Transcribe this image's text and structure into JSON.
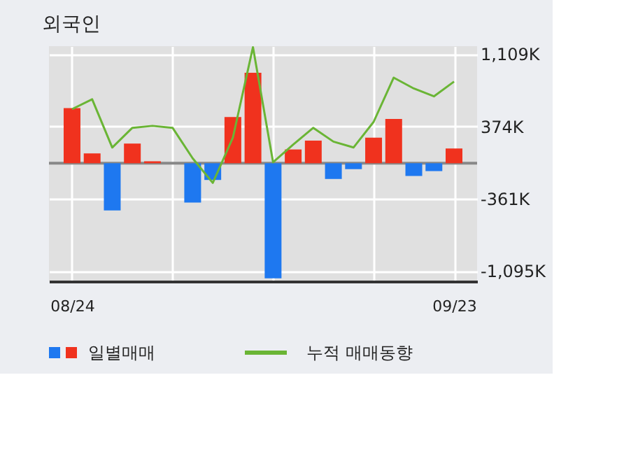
{
  "chart_data": {
    "type": "bar",
    "title": "외국인",
    "categories": [
      "08/24",
      null,
      null,
      null,
      null,
      null,
      null,
      null,
      null,
      null,
      null,
      null,
      null,
      null,
      null,
      null,
      null,
      null,
      null,
      "09/23"
    ],
    "series": [
      {
        "name": "일별매매",
        "colors": [
          "#f0321e",
          "#f0321e",
          "#1e78f0",
          "#f0321e",
          "#f0321e",
          "#f0321e",
          "#1e78f0",
          "#1e78f0",
          "#f0321e",
          "#f0321e",
          "#1e78f0",
          "#f0321e",
          "#f0321e",
          "#1e78f0",
          "#1e78f0",
          "#f0321e",
          "#f0321e",
          "#1e78f0",
          "#1e78f0",
          "#f0321e"
        ],
        "values": [
          560,
          100,
          -480,
          200,
          20,
          0,
          -400,
          -170,
          470,
          920,
          -1170,
          140,
          230,
          -160,
          -60,
          260,
          450,
          -130,
          -80,
          150
        ]
      },
      {
        "name": "누적 매매동향",
        "type": "line",
        "color": "#6ab535",
        "values": [
          550,
          650,
          160,
          360,
          380,
          360,
          50,
          -200,
          260,
          1180,
          10,
          190,
          360,
          220,
          160,
          420,
          870,
          760,
          680,
          830
        ]
      }
    ],
    "ylim": [
      -1200,
      1190
    ],
    "yticks": [
      {
        "value": 1109,
        "label": "1,109K"
      },
      {
        "value": 374,
        "label": "374K"
      },
      {
        "value": -361,
        "label": "-361K"
      },
      {
        "value": -1095,
        "label": "-1,095K"
      }
    ],
    "ref_lines": [
      {
        "axis": "y",
        "value": 0,
        "color": "#888888"
      }
    ],
    "grid": true,
    "legend": "bottom",
    "marker": "none",
    "line_style": "solid"
  }
}
